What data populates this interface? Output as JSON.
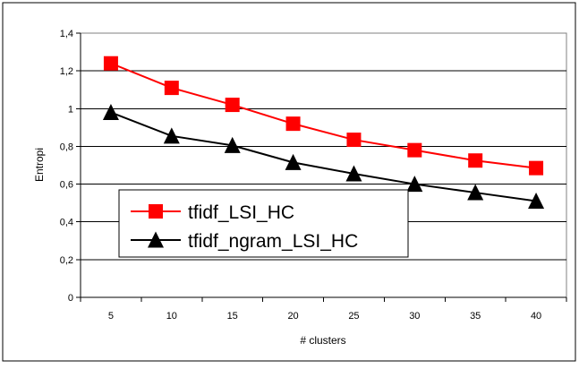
{
  "chart_data": {
    "type": "line",
    "title": "",
    "xlabel": "# clusters",
    "ylabel": "Entropi",
    "categories": [
      "5",
      "10",
      "15",
      "20",
      "25",
      "30",
      "35",
      "40"
    ],
    "ylim": [
      0,
      1.4
    ],
    "yticks": [
      "0",
      "0,2",
      "0,4",
      "0,6",
      "0,8",
      "1",
      "1,2",
      "1,4"
    ],
    "ytick_values": [
      0,
      0.2,
      0.4,
      0.6,
      0.8,
      1.0,
      1.2,
      1.4
    ],
    "grid": true,
    "legend_placement": "center-left",
    "series": [
      {
        "name": "tfidf_LSI_HC",
        "color": "#ff0000",
        "marker": "square",
        "values": [
          1.24,
          1.11,
          1.02,
          0.92,
          0.835,
          0.78,
          0.725,
          0.685
        ]
      },
      {
        "name": "tfidf_ngram_LSI_HC",
        "color": "#000000",
        "marker": "triangle",
        "values": [
          0.98,
          0.855,
          0.805,
          0.715,
          0.655,
          0.6,
          0.555,
          0.51
        ]
      }
    ]
  }
}
